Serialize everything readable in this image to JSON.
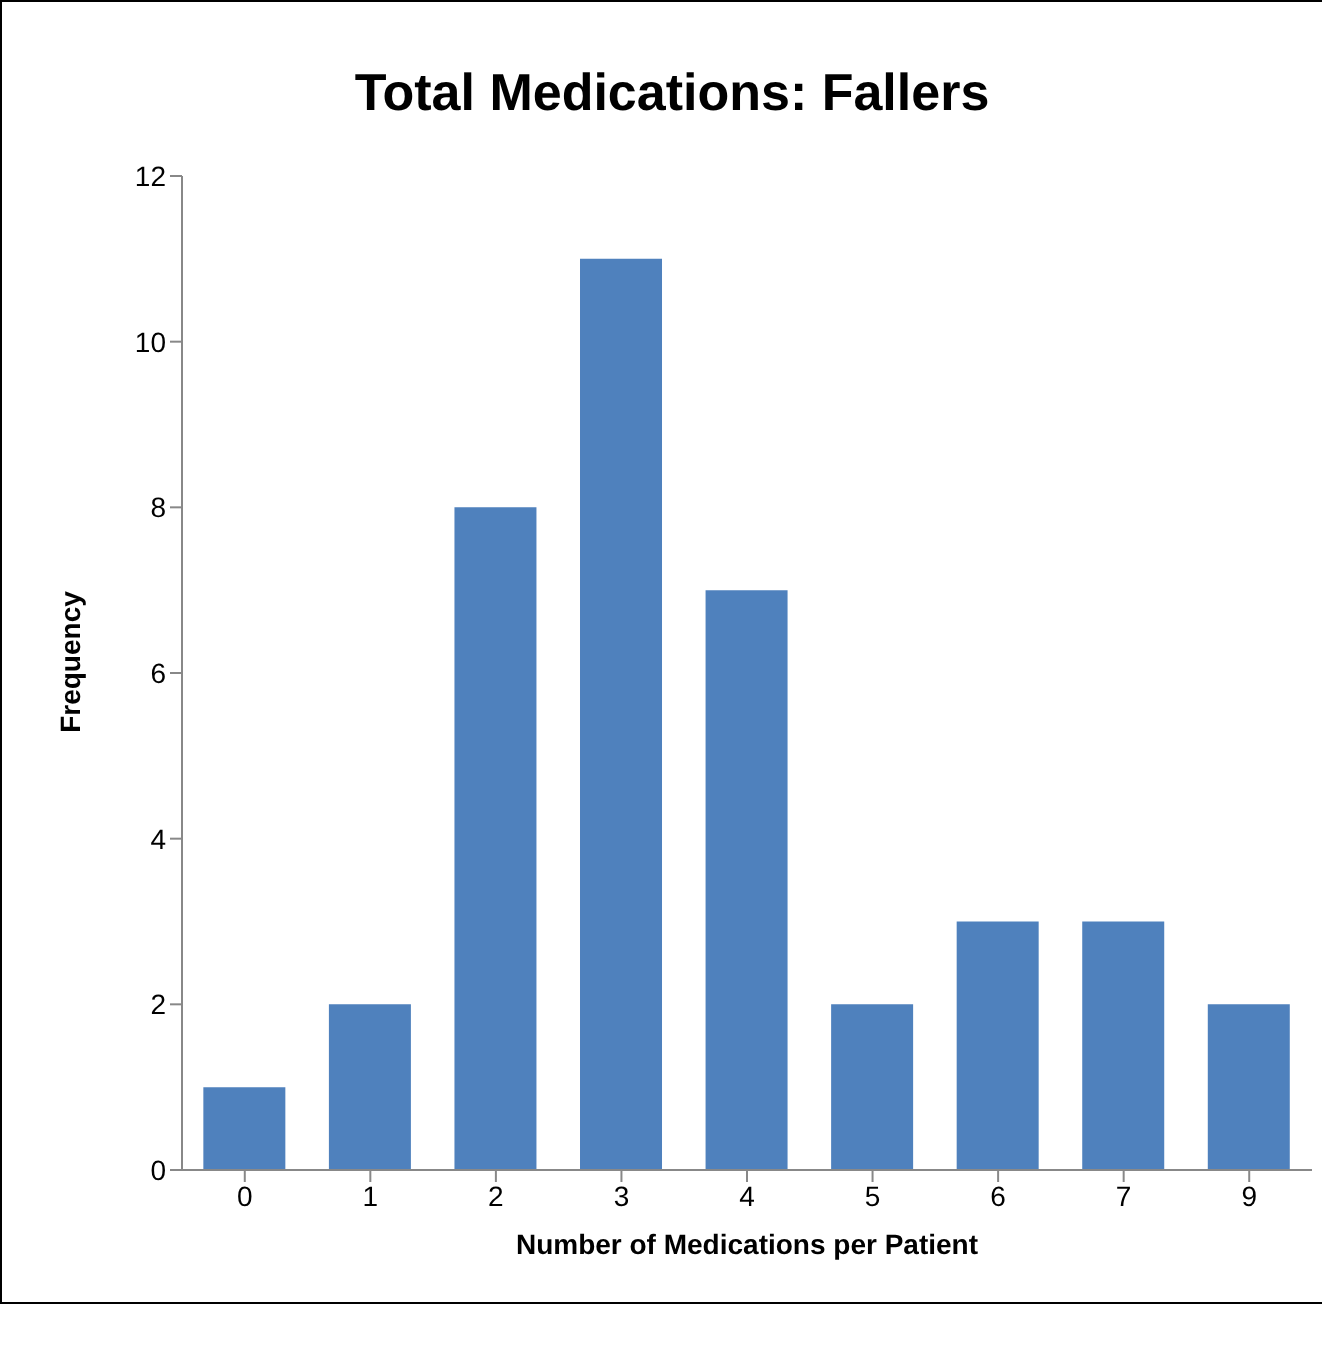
{
  "chart_data": {
    "type": "bar",
    "title": "Total Medications: Fallers",
    "xlabel": "Number of Medications per Patient",
    "ylabel": "Frequency",
    "categories": [
      "0",
      "1",
      "2",
      "3",
      "4",
      "5",
      "6",
      "7",
      "9"
    ],
    "values": [
      1,
      2,
      8,
      11,
      7,
      2,
      3,
      3,
      2
    ],
    "color": "#4f81bd",
    "ylim": [
      0,
      12
    ],
    "yticks": [
      0,
      2,
      4,
      6,
      8,
      10,
      12
    ]
  }
}
